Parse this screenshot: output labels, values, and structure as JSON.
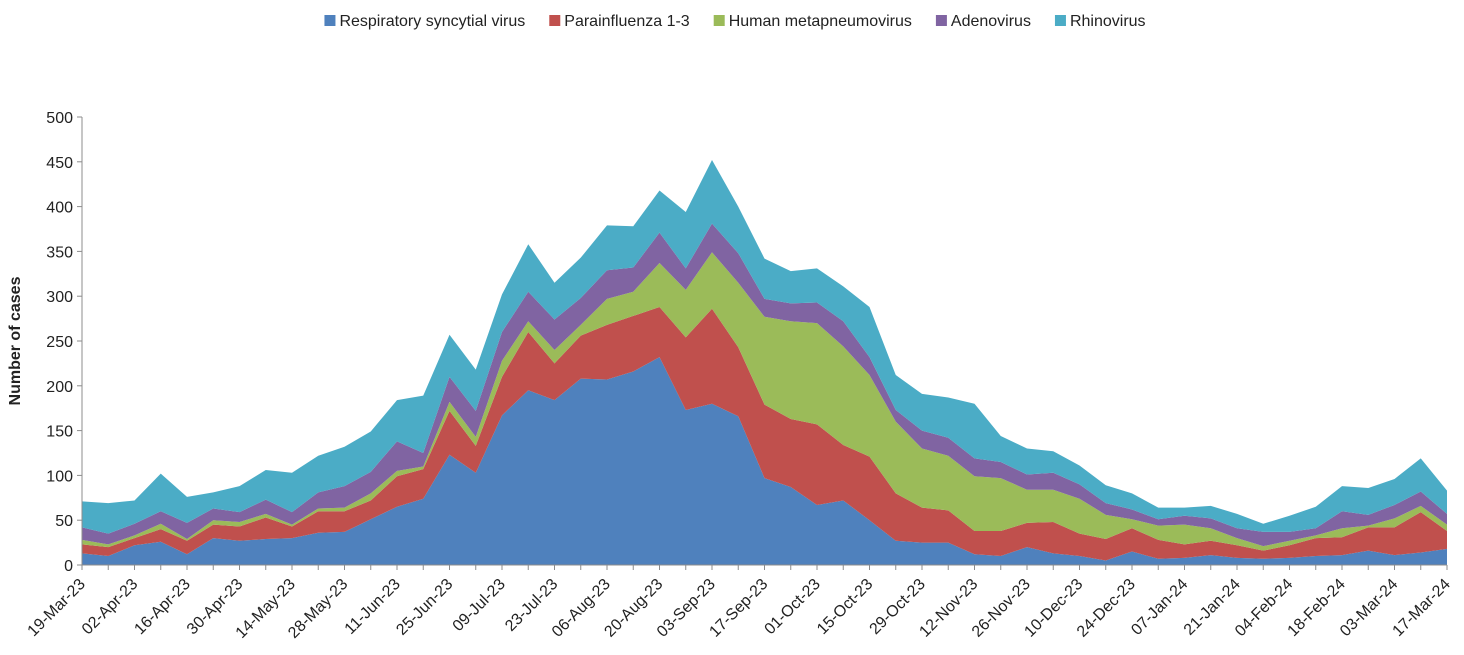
{
  "chart_data": {
    "type": "stacked-area",
    "y_label": "Number of cases",
    "categories": [
      "19-Mar-23",
      null,
      "02-Apr-23",
      null,
      "16-Apr-23",
      null,
      "30-Apr-23",
      null,
      "14-May-23",
      null,
      "28-May-23",
      null,
      "11-Jun-23",
      null,
      "25-Jun-23",
      null,
      "09-Jul-23",
      null,
      "23-Jul-23",
      null,
      "06-Aug-23",
      null,
      "20-Aug-23",
      null,
      "03-Sep-23",
      null,
      "17-Sep-23",
      null,
      "01-Oct-23",
      null,
      "15-Oct-23",
      null,
      "29-Oct-23",
      null,
      "12-Nov-23",
      null,
      "26-Nov-23",
      null,
      "10-Dec-23",
      null,
      "24-Dec-23",
      null,
      "07-Jan-24",
      null,
      "21-Jan-24",
      null,
      "04-Feb-24",
      null,
      "18-Feb-24",
      null,
      "03-Mar-24",
      null,
      "17-Mar-24"
    ],
    "series": [
      {
        "name": "Respiratory syncytial virus",
        "color": "#4f81bd",
        "values": [
          13,
          10,
          22,
          26,
          12,
          30,
          27,
          29,
          30,
          36,
          37,
          51,
          65,
          74,
          123,
          103,
          167,
          195,
          184,
          208,
          207,
          216,
          232,
          173,
          180,
          166,
          97,
          87,
          67,
          72,
          50,
          27,
          25,
          25,
          12,
          10,
          20,
          13,
          10,
          5,
          15,
          7,
          8,
          11,
          8,
          7,
          8,
          10,
          11,
          16,
          11,
          14,
          18
        ]
      },
      {
        "name": "Parainfluenza 1-3",
        "color": "#c0504d",
        "values": [
          10,
          10,
          8,
          14,
          15,
          15,
          16,
          24,
          13,
          24,
          23,
          21,
          34,
          33,
          49,
          30,
          43,
          65,
          41,
          48,
          61,
          62,
          56,
          81,
          106,
          77,
          82,
          76,
          90,
          62,
          71,
          53,
          39,
          36,
          26,
          28,
          27,
          35,
          25,
          24,
          26,
          21,
          15,
          16,
          14,
          9,
          14,
          20,
          20,
          26,
          31,
          45,
          20
        ]
      },
      {
        "name": "Human metapneumovirus",
        "color": "#9bbb59",
        "values": [
          5,
          3,
          3,
          6,
          2,
          5,
          5,
          4,
          2,
          3,
          4,
          8,
          6,
          3,
          10,
          10,
          18,
          12,
          15,
          12,
          29,
          27,
          49,
          53,
          63,
          72,
          98,
          109,
          113,
          110,
          91,
          80,
          66,
          61,
          61,
          59,
          37,
          36,
          39,
          27,
          10,
          16,
          22,
          14,
          8,
          5,
          5,
          3,
          10,
          2,
          10,
          7,
          7
        ]
      },
      {
        "name": "Adenovirus",
        "color": "#8064a2",
        "values": [
          14,
          12,
          13,
          14,
          18,
          13,
          11,
          16,
          14,
          18,
          24,
          24,
          33,
          15,
          28,
          29,
          32,
          33,
          34,
          30,
          32,
          27,
          34,
          24,
          32,
          33,
          20,
          20,
          23,
          28,
          20,
          13,
          20,
          20,
          20,
          18,
          17,
          19,
          16,
          13,
          11,
          7,
          10,
          11,
          11,
          16,
          10,
          8,
          19,
          12,
          15,
          16,
          12
        ]
      },
      {
        "name": "Rhinovirus",
        "color": "#4bacc6",
        "values": [
          29,
          34,
          26,
          42,
          29,
          18,
          29,
          33,
          44,
          41,
          44,
          45,
          46,
          64,
          47,
          46,
          42,
          53,
          41,
          45,
          50,
          46,
          47,
          63,
          71,
          52,
          45,
          36,
          38,
          39,
          56,
          39,
          41,
          45,
          61,
          29,
          29,
          24,
          21,
          20,
          18,
          13,
          9,
          14,
          16,
          9,
          18,
          24,
          28,
          30,
          29,
          37,
          26
        ]
      }
    ],
    "ylim": [
      0,
      500
    ],
    "yticks": [
      0,
      50,
      100,
      150,
      200,
      250,
      300,
      350,
      400,
      450,
      500
    ],
    "legend": "top"
  }
}
